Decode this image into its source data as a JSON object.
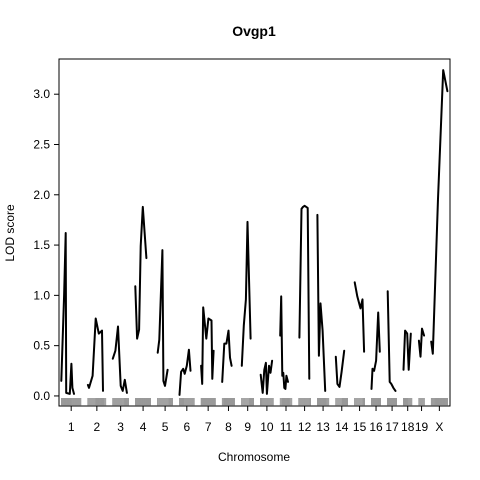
{
  "chart_data": {
    "type": "line",
    "title": "Ovgp1",
    "xlabel": "Chromosome",
    "ylabel": "LOD score",
    "ylim": [
      -0.1,
      3.35
    ],
    "y_ticks": [
      "0.0",
      "0.5",
      "1.0",
      "1.5",
      "2.0",
      "2.5",
      "3.0"
    ],
    "y_tick_values": [
      0,
      0.5,
      1.0,
      1.5,
      2.0,
      2.5,
      3.0
    ],
    "grid": false,
    "legend": "none",
    "line_color": "#000000",
    "marker_rug": true,
    "chromosomes": [
      {
        "name": "1",
        "tick_label": "1",
        "length": 196,
        "points": [
          [
            3,
            0.15
          ],
          [
            30,
            1.0
          ],
          [
            45,
            1.62
          ],
          [
            50,
            0.03
          ],
          [
            85,
            0.02
          ],
          [
            100,
            0.32
          ],
          [
            110,
            0.08
          ],
          [
            125,
            0.02
          ]
        ]
      },
      {
        "name": "2",
        "tick_label": "2",
        "length": 182,
        "points": [
          [
            5,
            0.11
          ],
          [
            15,
            0.08
          ],
          [
            50,
            0.2
          ],
          [
            80,
            0.77
          ],
          [
            110,
            0.62
          ],
          [
            140,
            0.65
          ],
          [
            150,
            0.05
          ]
        ]
      },
      {
        "name": "3",
        "tick_label": "3",
        "length": 160,
        "points": [
          [
            5,
            0.37
          ],
          [
            30,
            0.45
          ],
          [
            55,
            0.69
          ],
          [
            80,
            0.1
          ],
          [
            100,
            0.05
          ],
          [
            120,
            0.16
          ],
          [
            140,
            0.03
          ]
        ]
      },
      {
        "name": "4",
        "tick_label": "4",
        "length": 156,
        "points": [
          [
            3,
            1.09
          ],
          [
            20,
            0.57
          ],
          [
            40,
            0.66
          ],
          [
            55,
            1.49
          ],
          [
            75,
            1.88
          ],
          [
            110,
            1.37
          ]
        ]
      },
      {
        "name": "5",
        "tick_label": "5",
        "length": 152,
        "points": [
          [
            5,
            0.43
          ],
          [
            20,
            0.56
          ],
          [
            50,
            1.45
          ],
          [
            60,
            0.15
          ],
          [
            75,
            0.1
          ],
          [
            100,
            0.26
          ]
        ]
      },
      {
        "name": "6",
        "tick_label": "6",
        "length": 150,
        "points": [
          [
            5,
            0.01
          ],
          [
            20,
            0.24
          ],
          [
            40,
            0.27
          ],
          [
            55,
            0.22
          ],
          [
            75,
            0.3
          ],
          [
            95,
            0.46
          ],
          [
            110,
            0.25
          ]
        ]
      },
      {
        "name": "7",
        "tick_label": "7",
        "length": 145,
        "points": [
          [
            5,
            0.3
          ],
          [
            15,
            0.12
          ],
          [
            25,
            0.88
          ],
          [
            55,
            0.57
          ],
          [
            75,
            0.77
          ],
          [
            105,
            0.75
          ],
          [
            112,
            0.17
          ],
          [
            125,
            0.45
          ]
        ]
      },
      {
        "name": "8",
        "tick_label": "8",
        "length": 130,
        "points": [
          [
            5,
            0.14
          ],
          [
            25,
            0.52
          ],
          [
            45,
            0.52
          ],
          [
            65,
            0.65
          ],
          [
            80,
            0.38
          ],
          [
            95,
            0.3
          ]
        ]
      },
      {
        "name": "9",
        "tick_label": "9",
        "length": 124,
        "points": [
          [
            5,
            0.3
          ],
          [
            25,
            0.7
          ],
          [
            45,
            0.96
          ],
          [
            60,
            1.73
          ],
          [
            90,
            0.57
          ]
        ]
      },
      {
        "name": "10",
        "tick_label": "10",
        "length": 130,
        "points": [
          [
            5,
            0.21
          ],
          [
            25,
            0.03
          ],
          [
            40,
            0.26
          ],
          [
            55,
            0.33
          ],
          [
            65,
            0.02
          ],
          [
            85,
            0.3
          ],
          [
            100,
            0.23
          ],
          [
            115,
            0.35
          ]
        ]
      },
      {
        "name": "11",
        "tick_label": "11",
        "length": 122,
        "points": [
          [
            5,
            0.6
          ],
          [
            15,
            0.99
          ],
          [
            25,
            0.2
          ],
          [
            35,
            0.23
          ],
          [
            45,
            0.08
          ],
          [
            55,
            0.07
          ],
          [
            65,
            0.2
          ],
          [
            80,
            0.14
          ]
        ]
      },
      {
        "name": "12",
        "tick_label": "12",
        "length": 120,
        "points": [
          [
            10,
            0.58
          ],
          [
            30,
            1.86
          ],
          [
            45,
            1.88
          ],
          [
            60,
            1.89
          ],
          [
            90,
            1.87
          ],
          [
            105,
            0.17
          ]
        ]
      },
      {
        "name": "13",
        "tick_label": "13",
        "length": 120,
        "points": [
          [
            5,
            1.8
          ],
          [
            20,
            0.4
          ],
          [
            35,
            0.92
          ],
          [
            55,
            0.65
          ],
          [
            80,
            0.05
          ]
        ]
      },
      {
        "name": "14",
        "tick_label": "14",
        "length": 124,
        "points": [
          [
            5,
            0.39
          ],
          [
            20,
            0.12
          ],
          [
            40,
            0.09
          ],
          [
            60,
            0.24
          ],
          [
            85,
            0.45
          ]
        ]
      },
      {
        "name": "15",
        "tick_label": "15",
        "length": 103,
        "points": [
          [
            5,
            1.13
          ],
          [
            30,
            0.99
          ],
          [
            60,
            0.87
          ],
          [
            80,
            0.96
          ],
          [
            95,
            0.44
          ]
        ]
      },
      {
        "name": "16",
        "tick_label": "16",
        "length": 98,
        "points": [
          [
            5,
            0.07
          ],
          [
            15,
            0.27
          ],
          [
            30,
            0.25
          ],
          [
            50,
            0.35
          ],
          [
            70,
            0.83
          ],
          [
            85,
            0.44
          ]
        ]
      },
      {
        "name": "17",
        "tick_label": "17",
        "length": 95,
        "points": [
          [
            5,
            1.04
          ],
          [
            25,
            0.14
          ],
          [
            40,
            0.12
          ],
          [
            60,
            0.08
          ],
          [
            80,
            0.05
          ]
        ]
      },
      {
        "name": "18",
        "tick_label": "18",
        "length": 90,
        "points": [
          [
            5,
            0.26
          ],
          [
            20,
            0.65
          ],
          [
            40,
            0.62
          ],
          [
            55,
            0.26
          ],
          [
            75,
            0.62
          ]
        ]
      },
      {
        "name": "19",
        "tick_label": "19",
        "length": 61,
        "points": [
          [
            5,
            0.55
          ],
          [
            20,
            0.39
          ],
          [
            35,
            0.67
          ],
          [
            55,
            0.6
          ]
        ]
      },
      {
        "name": "X",
        "tick_label": "X",
        "length": 166,
        "points": [
          [
            5,
            0.54
          ],
          [
            20,
            0.42
          ],
          [
            70,
            1.96
          ],
          [
            120,
            3.24
          ],
          [
            160,
            3.03
          ]
        ]
      }
    ]
  }
}
